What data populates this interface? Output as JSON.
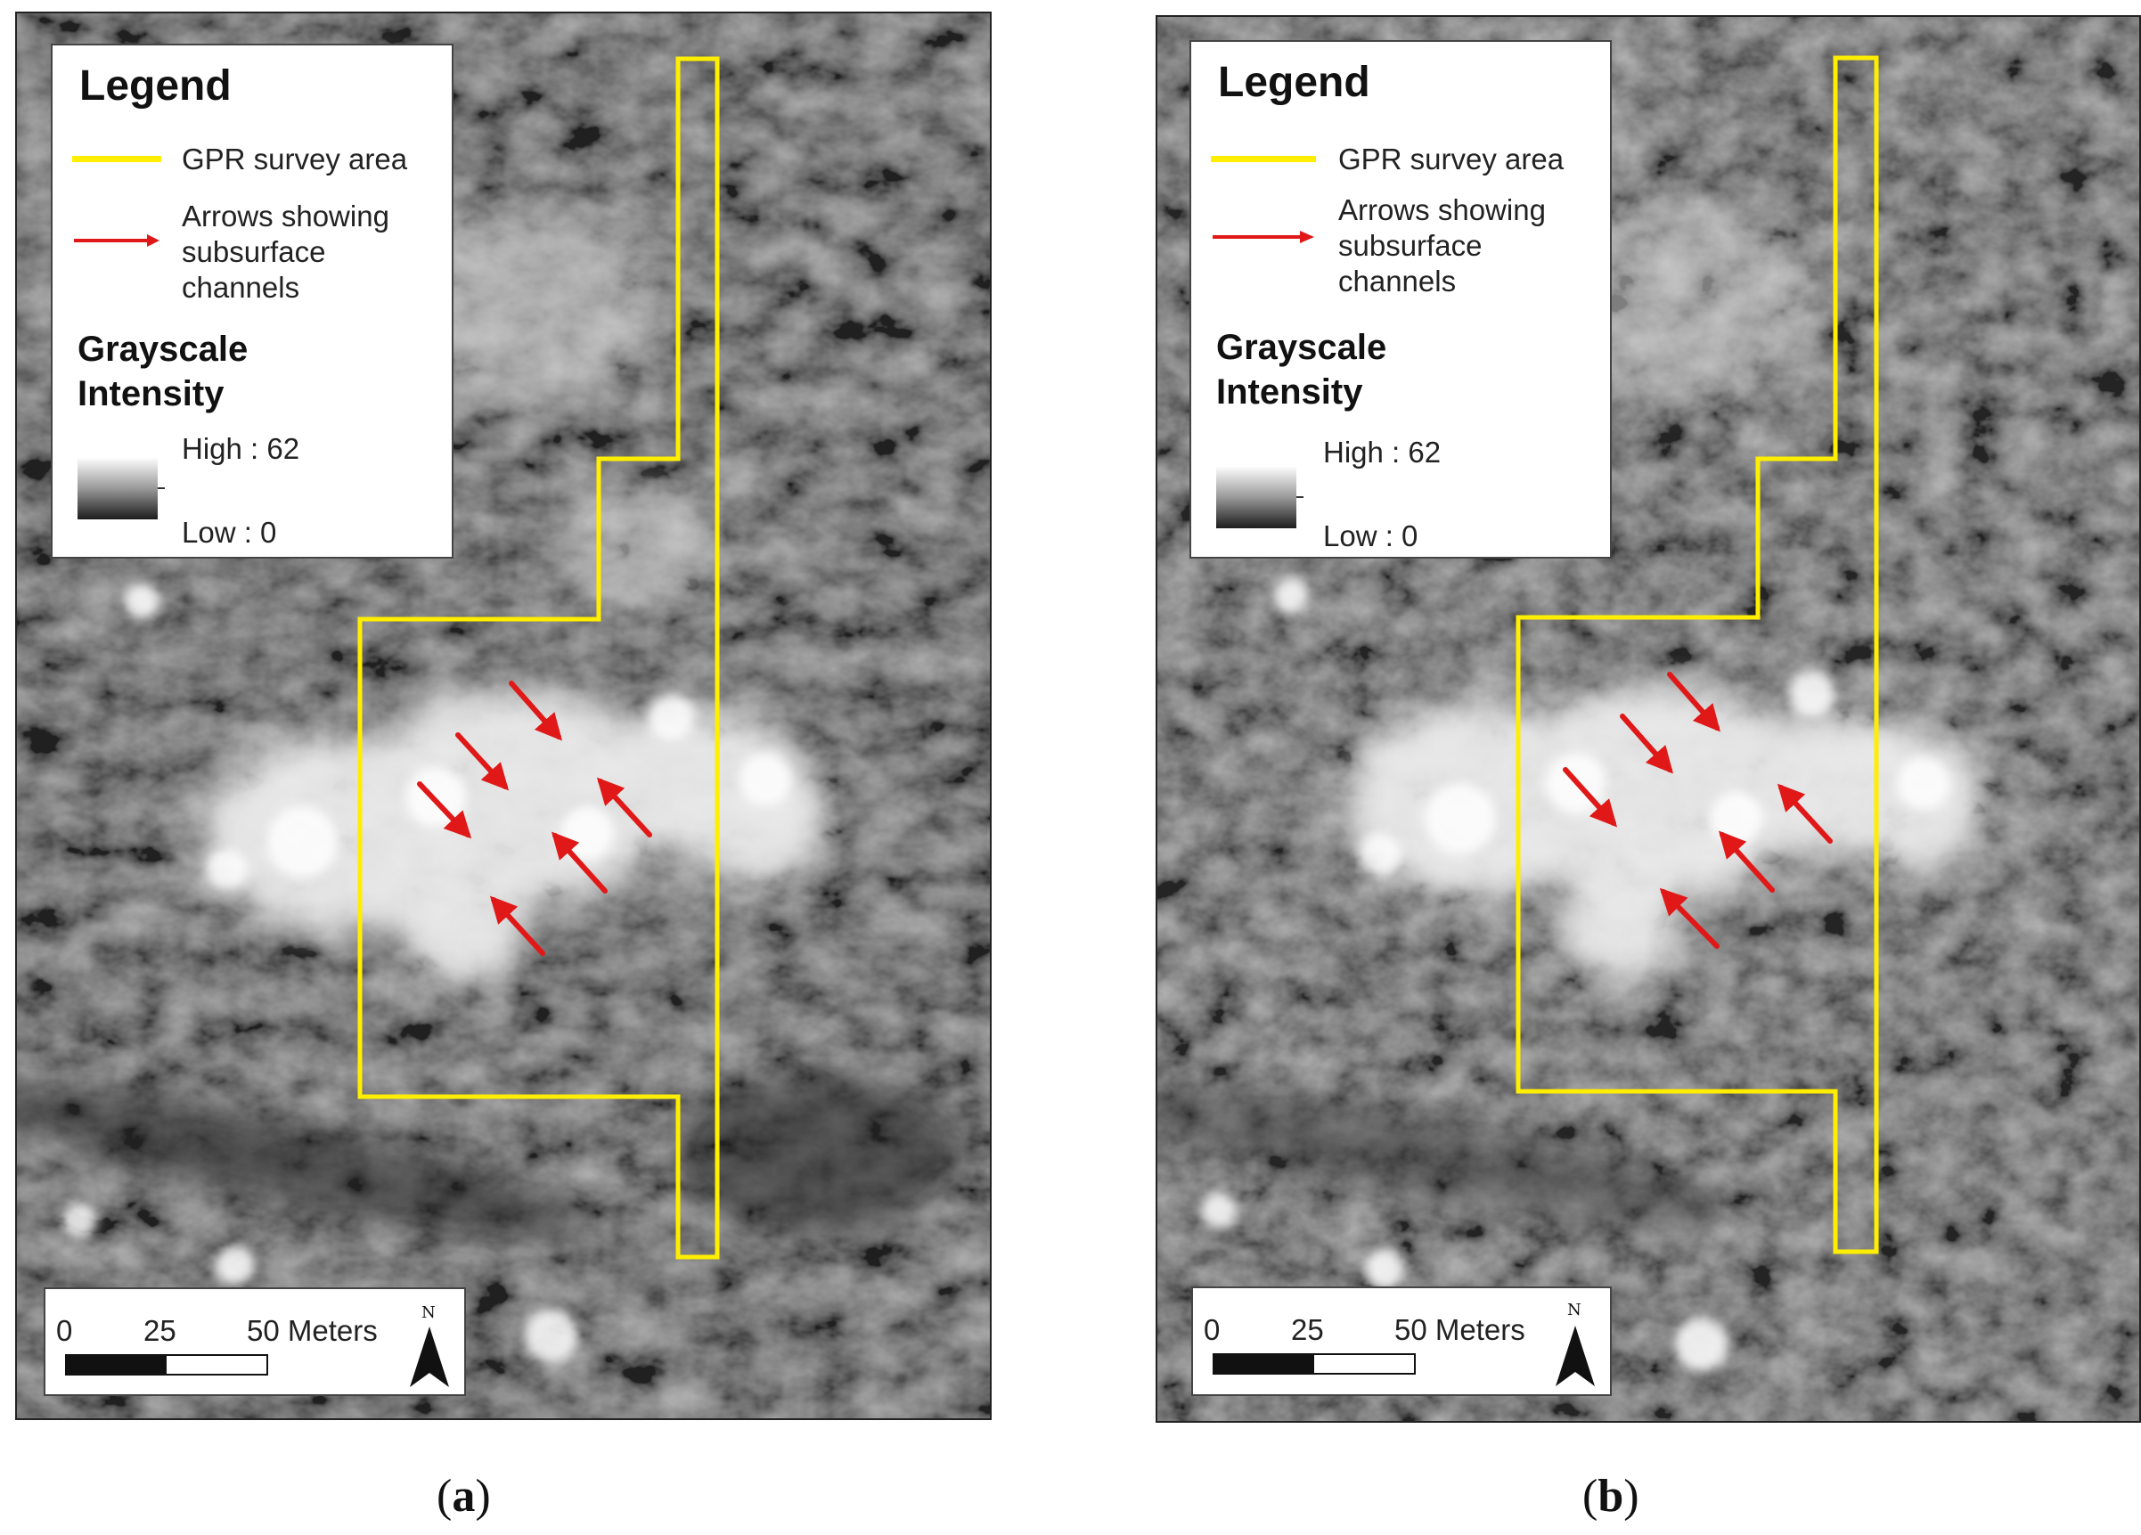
{
  "panels": [
    {
      "id": "a",
      "caption_letter": "a",
      "legend": {
        "title": "Legend",
        "survey_label": "GPR survey area",
        "arrows_label_lines": [
          "Arrows showing",
          "subsurface",
          "channels"
        ],
        "intensity_title_lines": [
          "Grayscale",
          "Intensity"
        ],
        "high_label": "High : 62",
        "low_label": "Low : 0"
      },
      "scale": {
        "tick_labels": [
          "0",
          "25",
          "50 Meters"
        ],
        "north_label": "N"
      }
    },
    {
      "id": "b",
      "caption_letter": "b",
      "legend": {
        "title": "Legend",
        "survey_label": "GPR survey area",
        "arrows_label_lines": [
          "Arrows showing",
          "subsurface",
          "channels"
        ],
        "intensity_title_lines": [
          "Grayscale",
          "Intensity"
        ],
        "high_label": "High : 62",
        "low_label": "Low : 0"
      },
      "scale": {
        "tick_labels": [
          "0",
          "25",
          "50 Meters"
        ],
        "north_label": "N"
      }
    }
  ],
  "colors": {
    "survey_outline": "#ffee00",
    "channel_arrow": "#e01818",
    "raster_dark": "#3a3a3a",
    "raster_bright": "#f2f2f2"
  },
  "icons": [
    "north-arrow-icon",
    "channel-arrow-icon"
  ]
}
